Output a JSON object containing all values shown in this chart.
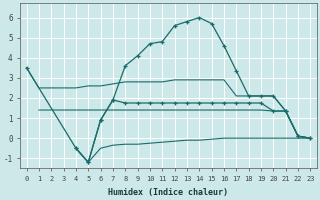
{
  "background_color": "#cce8e8",
  "grid_color": "#b8d8d8",
  "line_color": "#1a6b6b",
  "x_label": "Humidex (Indice chaleur)",
  "xlim": [
    -0.5,
    23.5
  ],
  "ylim": [
    -1.5,
    6.7
  ],
  "yticks": [
    -1,
    0,
    1,
    2,
    3,
    4,
    5,
    6
  ],
  "xticks": [
    0,
    1,
    2,
    3,
    4,
    5,
    6,
    7,
    8,
    9,
    10,
    11,
    12,
    13,
    14,
    15,
    16,
    17,
    18,
    19,
    20,
    21,
    22,
    23
  ],
  "series": [
    {
      "x": [
        0,
        1,
        2,
        3,
        4,
        5,
        6,
        7,
        8,
        9,
        10,
        11,
        12,
        13,
        14,
        15,
        16,
        17,
        18,
        19,
        20,
        21,
        22,
        23
      ],
      "y": [
        3.5,
        2.5,
        2.5,
        2.5,
        2.5,
        2.6,
        2.6,
        2.7,
        2.8,
        2.8,
        2.8,
        2.8,
        2.9,
        2.9,
        2.9,
        2.9,
        2.9,
        2.1,
        2.1,
        2.1,
        2.1,
        1.35,
        0.1,
        0.0
      ],
      "marker": false
    },
    {
      "x": [
        1,
        2,
        3,
        4,
        5,
        6,
        7,
        8,
        9,
        10,
        11,
        12,
        13,
        14,
        15,
        16,
        17,
        18,
        19,
        20,
        21,
        22,
        23
      ],
      "y": [
        1.4,
        1.4,
        1.4,
        1.4,
        1.4,
        1.4,
        1.4,
        1.4,
        1.4,
        1.4,
        1.4,
        1.4,
        1.4,
        1.4,
        1.4,
        1.4,
        1.4,
        1.4,
        1.4,
        1.35,
        1.35,
        0.1,
        0.0
      ],
      "marker": false
    },
    {
      "x": [
        4,
        5,
        6,
        7,
        8,
        9,
        10,
        11,
        12,
        13,
        14,
        15,
        16,
        17,
        18,
        19,
        20,
        21,
        22,
        23
      ],
      "y": [
        -0.5,
        -1.2,
        0.9,
        1.9,
        1.75,
        1.75,
        1.75,
        1.75,
        1.75,
        1.75,
        1.75,
        1.75,
        1.75,
        1.75,
        1.75,
        1.75,
        1.35,
        1.35,
        0.1,
        0.0
      ],
      "marker": true
    },
    {
      "x": [
        4,
        5,
        6,
        7,
        8,
        9,
        10,
        11,
        12,
        13,
        14,
        15,
        16,
        17,
        18,
        19,
        20,
        21,
        22,
        23
      ],
      "y": [
        -0.5,
        -1.2,
        -0.5,
        -0.35,
        -0.3,
        -0.3,
        -0.25,
        -0.2,
        -0.15,
        -0.1,
        -0.1,
        -0.05,
        0.0,
        0.0,
        0.0,
        0.0,
        0.0,
        0.0,
        0.0,
        0.0
      ],
      "marker": false
    },
    {
      "x": [
        0,
        4,
        5,
        6,
        7,
        8,
        9,
        10,
        11,
        12,
        13,
        14,
        15,
        16,
        17,
        18,
        19,
        20,
        21,
        22,
        23
      ],
      "y": [
        3.5,
        -0.5,
        -1.2,
        0.9,
        1.9,
        3.6,
        4.1,
        4.7,
        4.8,
        5.6,
        5.8,
        6.0,
        5.7,
        4.6,
        3.35,
        2.1,
        2.1,
        2.1,
        1.35,
        0.1,
        0.0
      ],
      "marker": true
    }
  ]
}
